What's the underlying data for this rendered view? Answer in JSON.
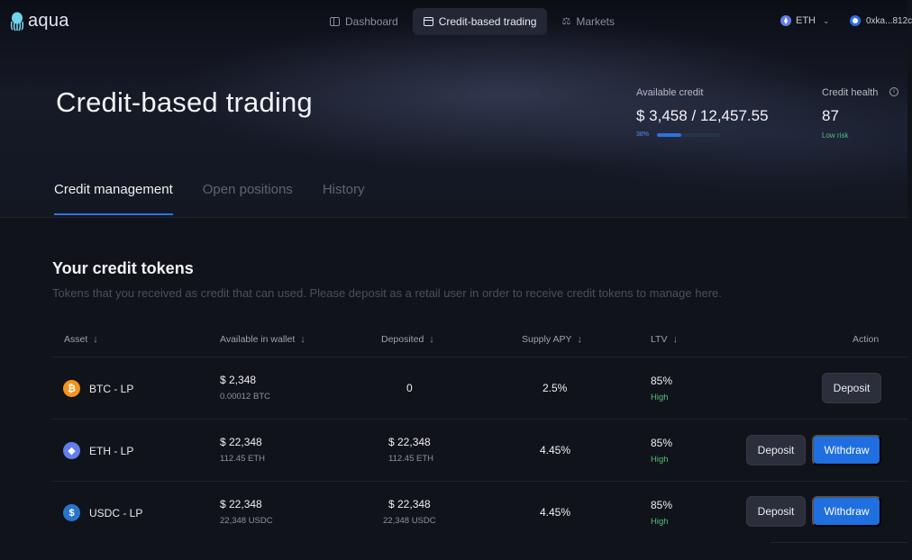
{
  "header": {
    "logo": "aqua",
    "nav": [
      {
        "label": "Dashboard",
        "icon": "dashboard-icon",
        "active": false
      },
      {
        "label": "Credit-based trading",
        "icon": "card-icon",
        "active": true
      },
      {
        "label": "Markets",
        "icon": "scale-icon",
        "active": false
      }
    ],
    "network": "ETH",
    "wallet": "0xka...812c"
  },
  "hero": {
    "title": "Credit-based trading",
    "available_credit_label": "Available credit",
    "available_credit": "$ 3,458",
    "total_credit": "/ 12,457.55",
    "credit_pct_label": "38%",
    "credit_pct": 0.38,
    "credit_health_label": "Credit health",
    "credit_health": "87",
    "credit_health_status": "Low risk"
  },
  "tabs": [
    {
      "label": "Credit management",
      "active": true
    },
    {
      "label": "Open positions",
      "active": false
    },
    {
      "label": "History",
      "active": false
    }
  ],
  "section": {
    "title": "Your credit tokens",
    "description": "Tokens that you received as credit that can  used. Please deposit as a retail user in order to receive credit tokens to manage here."
  },
  "table": {
    "headers": {
      "asset": "Asset",
      "available": "Available in wallet",
      "deposited": "Deposited",
      "apy": "Supply APY",
      "ltv": "LTV",
      "action": "Action"
    },
    "rows": [
      {
        "asset": "BTC - LP",
        "coin": "btc",
        "available": "$ 2,348",
        "available_sub": "0.00012 BTC",
        "deposited": "0",
        "deposited_sub": "",
        "apy": "2.5%",
        "ltv": "85%",
        "risk": "High",
        "deposit": "Deposit",
        "withdraw": ""
      },
      {
        "asset": "ETH - LP",
        "coin": "eth",
        "available": "$ 22,348",
        "available_sub": "112.45 ETH",
        "deposited": "$ 22,348",
        "deposited_sub": "112.45 ETH",
        "apy": "4.45%",
        "ltv": "85%",
        "risk": "High",
        "deposit": "Deposit",
        "withdraw": "Withdraw"
      },
      {
        "asset": "USDC - LP",
        "coin": "usdc",
        "available": "$ 22,348",
        "available_sub": "22,348 USDC",
        "deposited": "$ 22,348",
        "deposited_sub": "22,348 USDC",
        "apy": "4.45%",
        "ltv": "85%",
        "risk": "High",
        "deposit": "Deposit",
        "withdraw": "Withdraw"
      }
    ]
  },
  "colors": {
    "accent": "#1f6fe0",
    "risk_low": "#4fbf7a",
    "background": "#11131a"
  }
}
